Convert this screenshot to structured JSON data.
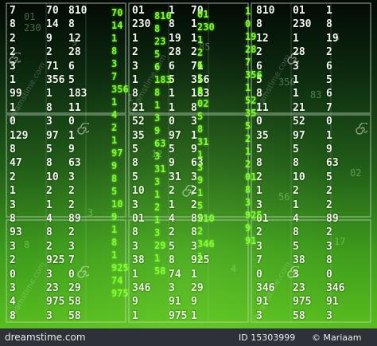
{
  "image": {
    "colors": {
      "base": "#3d9a1c",
      "digits": "#f4f8f0",
      "rain": "#7dff2a",
      "footer": "#2e3238"
    }
  },
  "matrix": {
    "rows": [
      [
        "7",
        "70",
        "810",
        "01",
        "1",
        "70",
        "810",
        "01",
        "1"
      ],
      [
        "8",
        "14",
        "8",
        "230",
        "8",
        "1",
        "8",
        "230",
        "8"
      ],
      [
        "2",
        "9",
        "12",
        "1",
        "19",
        "1",
        "12",
        "1",
        "19"
      ],
      [
        "2",
        "2",
        "28",
        "2",
        "28",
        "2",
        "2",
        "28",
        "2"
      ],
      [
        "3",
        "71",
        "6",
        "3",
        "6",
        "71",
        "6",
        "3",
        "6"
      ],
      [
        "1",
        "356",
        "5",
        "1",
        "5",
        "356",
        "5",
        "1",
        "5"
      ],
      [
        "99",
        "1",
        "183",
        "8",
        "1",
        "183",
        "8",
        "1",
        "6"
      ],
      [
        "1",
        "8",
        "11",
        "21",
        "1",
        "8",
        "11",
        "21",
        "7"
      ],
      [
        "0",
        "3",
        "0",
        "52",
        "0",
        "3",
        "0",
        "52",
        "0"
      ],
      [
        "129",
        "97",
        "1",
        "35",
        "97",
        "1",
        "35",
        "97",
        "1"
      ],
      [
        "8",
        "5",
        "9",
        "5",
        "5",
        "9",
        "5",
        "5",
        "9"
      ],
      [
        "47",
        "8",
        "63",
        "8",
        "9",
        "63",
        "8",
        "8",
        "63"
      ],
      [
        "2",
        "10",
        "3",
        "5",
        "31",
        "3",
        "2",
        "10",
        "5"
      ],
      [
        "1",
        "2",
        "2",
        "10",
        "2",
        "2",
        "1",
        "2",
        "2"
      ],
      [
        "3",
        "1",
        "2",
        "3",
        "1",
        "2",
        "3",
        "1",
        "2"
      ],
      [
        "8",
        "4",
        "89",
        "01",
        "4",
        "89",
        "01",
        "4",
        "89"
      ],
      [
        "93",
        "8",
        "2",
        "8",
        "2",
        "8",
        "2",
        "8",
        "2"
      ],
      [
        "3",
        "2",
        "3",
        "3",
        "5",
        "3",
        "3",
        "5",
        "3"
      ],
      [
        "2",
        "925",
        "7",
        "38",
        "8",
        "925",
        "7",
        "38",
        "8"
      ],
      [
        "0",
        "3",
        "0",
        "1",
        "74",
        "1",
        "0",
        "3",
        "0"
      ],
      [
        "3",
        "23",
        "29",
        "346",
        "3",
        "29",
        "346",
        "23",
        "346"
      ],
      [
        "4",
        "975",
        "58",
        "9",
        "91",
        "9",
        "91",
        "975",
        "91"
      ],
      [
        "8",
        "3",
        "58",
        "1",
        "975",
        "1",
        "3",
        "58",
        "3"
      ]
    ],
    "rain_columns": [
      "70\n14\n1\n8\n3\n7\n356\n1\n4\n2\n1\n97\n9\n8\n5\n10\n9\n1\n8\n1\n925\n74\n975",
      "810\n8\n23\n5\n6\n183\n8\n1\n3\n9\n63\n3\n31\n3\n1\n2\n1\n3\n29\n1\n58",
      "01\n230\n1\n2\n6\n1\n8\n02\n5\n8\n31\n1\n3\n9\n1\n5\n210\n2\n346\n1",
      "1\n0\n19\n28\n7\n356\n1\n52\n35\n5\n2\n1\n2\n01\n8\n3\n925\n9\n91"
    ],
    "ghost_digits": [
      "01",
      "230",
      "9",
      "356",
      "83",
      "2",
      "1",
      "85",
      "5",
      "12",
      "56",
      "3",
      "17",
      "8",
      "4",
      "02"
    ],
    "watermarks": [
      "dreamstime.com",
      "dreamstime.com",
      "dreamstime.com",
      "dreamstime.com",
      "dreamstime.com"
    ]
  },
  "footer": {
    "site": "dreamstime.com",
    "id": "ID 15303999",
    "copyright": "© Mariaam"
  }
}
